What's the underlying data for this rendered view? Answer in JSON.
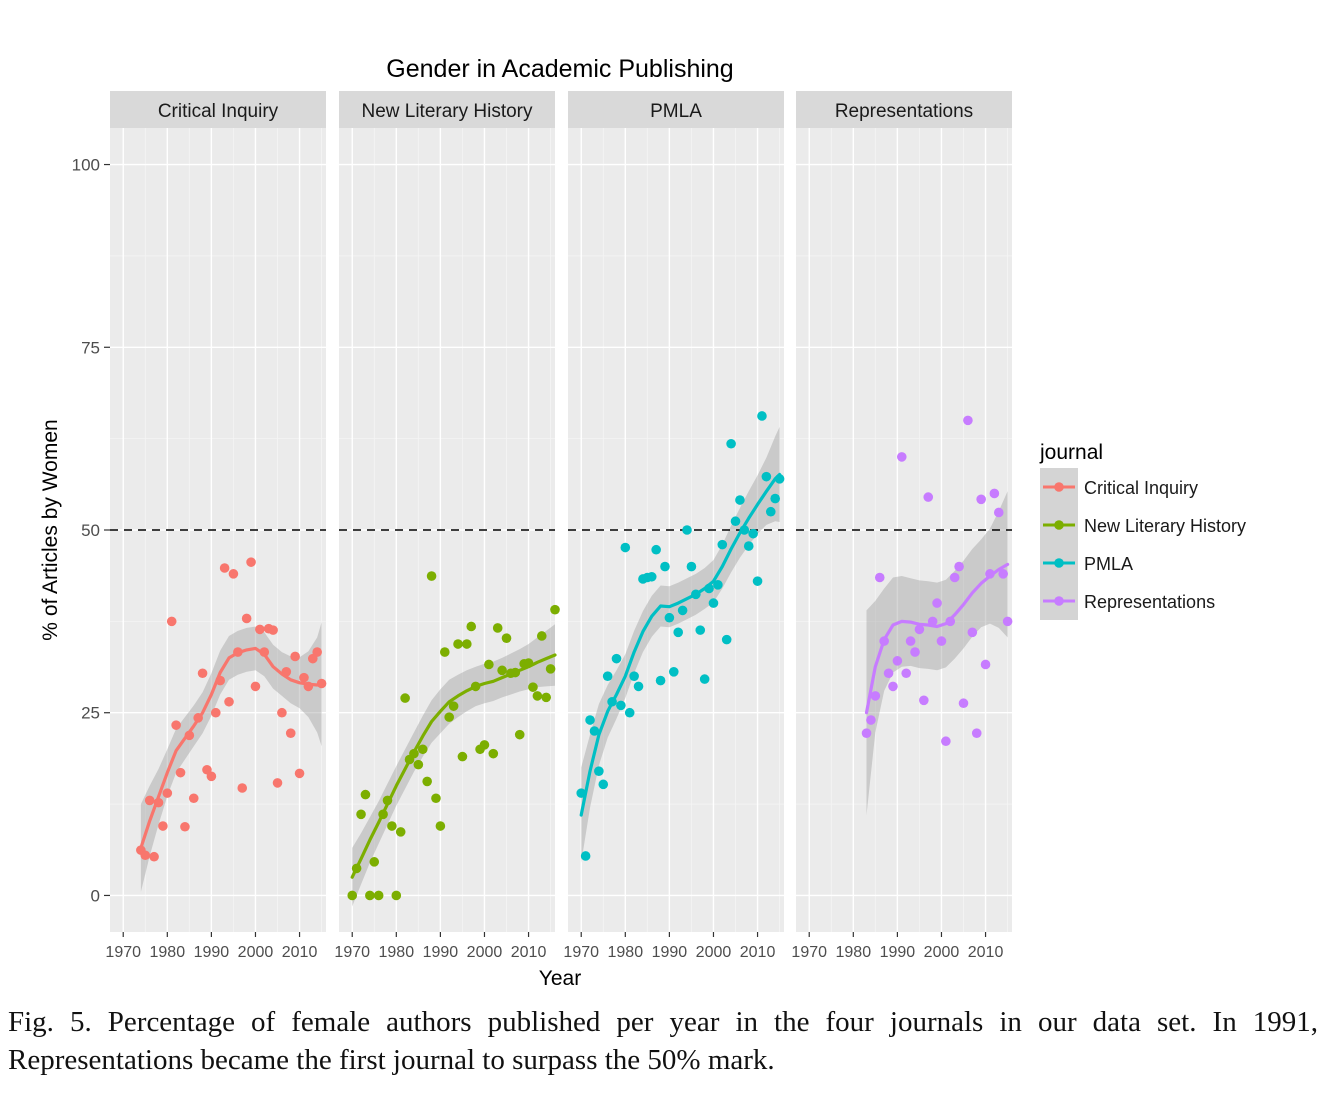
{
  "chart_data": {
    "type": "scatter",
    "title": "Gender in Academic Publishing",
    "xlabel": "Year",
    "ylabel": "% of Articles by Women",
    "x_ticks": [
      1970,
      1980,
      1990,
      2000,
      2010
    ],
    "x_tick_labels": [
      "1970",
      "1980",
      "1990",
      "2000",
      "2010"
    ],
    "xlim": [
      1967,
      2016
    ],
    "y_ticks": [
      0,
      25,
      50,
      75,
      100
    ],
    "y_tick_labels": [
      "0",
      "25",
      "50",
      "75",
      "100"
    ],
    "ylim": [
      -5,
      105
    ],
    "reference_line": {
      "y": 50,
      "style": "dashed"
    },
    "grid": true,
    "smoother": "loess with confidence band",
    "legend": {
      "title": "journal",
      "position": "right"
    },
    "facets": [
      {
        "name": "Critical Inquiry",
        "color": "#F8766D",
        "points": [
          [
            1974,
            6.2
          ],
          [
            1975,
            5.5
          ],
          [
            1976,
            13
          ],
          [
            1977,
            5.3
          ],
          [
            1978,
            12.7
          ],
          [
            1979,
            9.5
          ],
          [
            1980,
            14
          ],
          [
            1981,
            37.5
          ],
          [
            1982,
            23.3
          ],
          [
            1983,
            16.8
          ],
          [
            1984,
            9.4
          ],
          [
            1985,
            21.9
          ],
          [
            1986,
            13.3
          ],
          [
            1987,
            24.3
          ],
          [
            1988,
            30.4
          ],
          [
            1989,
            17.2
          ],
          [
            1990,
            16.3
          ],
          [
            1991,
            25
          ],
          [
            1992,
            29.4
          ],
          [
            1993,
            44.8
          ],
          [
            1994,
            26.5
          ],
          [
            1995,
            44
          ],
          [
            1996,
            33.3
          ],
          [
            1997,
            14.7
          ],
          [
            1998,
            37.9
          ],
          [
            1999,
            45.6
          ],
          [
            2000,
            28.6
          ],
          [
            2001,
            36.4
          ],
          [
            2002,
            33.3
          ],
          [
            2003,
            36.5
          ],
          [
            2004,
            36.3
          ],
          [
            2005,
            15.4
          ],
          [
            2006,
            25
          ],
          [
            2007,
            30.6
          ],
          [
            2008,
            22.2
          ],
          [
            2009,
            32.7
          ],
          [
            2010,
            16.7
          ],
          [
            2011,
            29.8
          ],
          [
            2012,
            28.6
          ],
          [
            2013,
            32.4
          ],
          [
            2014,
            33.3
          ],
          [
            2015,
            29
          ]
        ],
        "smooth": [
          [
            1974,
            6.5
          ],
          [
            1976,
            10.2
          ],
          [
            1978,
            13.5
          ],
          [
            1980,
            16.8
          ],
          [
            1982,
            19.8
          ],
          [
            1984,
            21.5
          ],
          [
            1986,
            23.2
          ],
          [
            1988,
            25
          ],
          [
            1990,
            27.5
          ],
          [
            1992,
            30.5
          ],
          [
            1994,
            32.5
          ],
          [
            1996,
            33.2
          ],
          [
            1998,
            33.6
          ],
          [
            2000,
            33.8
          ],
          [
            2002,
            33
          ],
          [
            2004,
            31.3
          ],
          [
            2006,
            30.3
          ],
          [
            2008,
            29.5
          ],
          [
            2010,
            29.1
          ],
          [
            2012,
            28.9
          ],
          [
            2014,
            28.8
          ],
          [
            2015,
            28.9
          ]
        ],
        "band_halfwidth": [
          6,
          4.8,
          3.8,
          3.2,
          3,
          2.9,
          2.8,
          2.8,
          2.9,
          3,
          3,
          3,
          3,
          3,
          3,
          3,
          3,
          3.2,
          3.5,
          4.5,
          6.5,
          8.5
        ]
      },
      {
        "name": "New Literary History",
        "color": "#7CAE00",
        "points": [
          [
            1970,
            0
          ],
          [
            1971,
            3.7
          ],
          [
            1972,
            11.1
          ],
          [
            1973,
            13.8
          ],
          [
            1974,
            0
          ],
          [
            1975,
            4.6
          ],
          [
            1976,
            0
          ],
          [
            1977,
            11.1
          ],
          [
            1978,
            13
          ],
          [
            1979,
            9.5
          ],
          [
            1980,
            0
          ],
          [
            1981,
            8.7
          ],
          [
            1982,
            27
          ],
          [
            1983,
            18.6
          ],
          [
            1984,
            19.4
          ],
          [
            1985,
            17.9
          ],
          [
            1986,
            20
          ],
          [
            1987,
            15.6
          ],
          [
            1988,
            43.7
          ],
          [
            1989,
            13.3
          ],
          [
            1990,
            9.5
          ],
          [
            1991,
            33.3
          ],
          [
            1992,
            24.4
          ],
          [
            1993,
            25.9
          ],
          [
            1994,
            34.4
          ],
          [
            1995,
            19
          ],
          [
            1996,
            34.4
          ],
          [
            1997,
            36.8
          ],
          [
            1998,
            28.6
          ],
          [
            1999,
            20
          ],
          [
            2000,
            20.6
          ],
          [
            2001,
            31.6
          ],
          [
            2002,
            19.4
          ],
          [
            2003,
            36.6
          ],
          [
            2004,
            30.8
          ],
          [
            2005,
            35.2
          ],
          [
            2006,
            30.4
          ],
          [
            2007,
            30.5
          ],
          [
            2008,
            22
          ],
          [
            2009,
            31.7
          ],
          [
            2010,
            31.8
          ],
          [
            2011,
            28.5
          ],
          [
            2012,
            27.3
          ],
          [
            2013,
            35.5
          ],
          [
            2014,
            27.1
          ],
          [
            2015,
            31
          ],
          [
            2016,
            39.1
          ]
        ],
        "smooth": [
          [
            1970,
            2.5
          ],
          [
            1972,
            5
          ],
          [
            1974,
            7.6
          ],
          [
            1976,
            10
          ],
          [
            1978,
            12.5
          ],
          [
            1980,
            15
          ],
          [
            1982,
            17.3
          ],
          [
            1984,
            19.6
          ],
          [
            1986,
            21.8
          ],
          [
            1988,
            23.8
          ],
          [
            1990,
            25.2
          ],
          [
            1992,
            26.5
          ],
          [
            1994,
            27.3
          ],
          [
            1996,
            28
          ],
          [
            1998,
            28.6
          ],
          [
            2000,
            29
          ],
          [
            2002,
            29.3
          ],
          [
            2004,
            29.8
          ],
          [
            2006,
            30.3
          ],
          [
            2008,
            30.8
          ],
          [
            2010,
            31.3
          ],
          [
            2012,
            31.9
          ],
          [
            2014,
            32.4
          ],
          [
            2016,
            32.9
          ]
        ],
        "band_halfwidth": [
          4,
          3.5,
          3.1,
          2.9,
          2.8,
          2.7,
          2.7,
          2.7,
          2.8,
          2.9,
          3,
          3,
          2.9,
          2.8,
          2.7,
          2.7,
          2.7,
          2.7,
          2.8,
          2.9,
          3.1,
          3.4,
          3.8,
          4.2
        ]
      },
      {
        "name": "PMLA",
        "color": "#00BFC4",
        "points": [
          [
            1970,
            14
          ],
          [
            1971,
            5.4
          ],
          [
            1972,
            24
          ],
          [
            1973,
            22.5
          ],
          [
            1974,
            17
          ],
          [
            1975,
            15.2
          ],
          [
            1976,
            30
          ],
          [
            1977,
            26.5
          ],
          [
            1978,
            32.4
          ],
          [
            1979,
            26
          ],
          [
            1980,
            47.6
          ],
          [
            1981,
            25
          ],
          [
            1982,
            30
          ],
          [
            1983,
            28.6
          ],
          [
            1984,
            43.3
          ],
          [
            1985,
            43.5
          ],
          [
            1986,
            43.6
          ],
          [
            1987,
            47.3
          ],
          [
            1988,
            29.4
          ],
          [
            1989,
            45
          ],
          [
            1990,
            38
          ],
          [
            1991,
            30.6
          ],
          [
            1992,
            36
          ],
          [
            1993,
            39
          ],
          [
            1994,
            50
          ],
          [
            1995,
            45
          ],
          [
            1996,
            41.2
          ],
          [
            1997,
            36.3
          ],
          [
            1998,
            29.6
          ],
          [
            1999,
            42
          ],
          [
            2000,
            40
          ],
          [
            2001,
            42.5
          ],
          [
            2002,
            48
          ],
          [
            2003,
            35
          ],
          [
            2004,
            61.8
          ],
          [
            2005,
            51.2
          ],
          [
            2006,
            54.1
          ],
          [
            2007,
            50
          ],
          [
            2008,
            47.8
          ],
          [
            2009,
            49.5
          ],
          [
            2010,
            43
          ],
          [
            2011,
            65.6
          ],
          [
            2012,
            57.3
          ],
          [
            2013,
            52.5
          ],
          [
            2014,
            54.3
          ],
          [
            2015,
            57
          ]
        ],
        "smooth": [
          [
            1970,
            11
          ],
          [
            1972,
            17
          ],
          [
            1974,
            22
          ],
          [
            1976,
            25.2
          ],
          [
            1978,
            27.5
          ],
          [
            1980,
            30
          ],
          [
            1982,
            33.3
          ],
          [
            1984,
            36.1
          ],
          [
            1986,
            38.2
          ],
          [
            1988,
            39.6
          ],
          [
            1990,
            39.5
          ],
          [
            1992,
            40
          ],
          [
            1994,
            40.6
          ],
          [
            1996,
            41.2
          ],
          [
            1998,
            42
          ],
          [
            2000,
            43
          ],
          [
            2002,
            45
          ],
          [
            2004,
            47.4
          ],
          [
            2006,
            49.6
          ],
          [
            2008,
            51.6
          ],
          [
            2010,
            53.5
          ],
          [
            2012,
            55.3
          ],
          [
            2014,
            57
          ],
          [
            2015,
            57.6
          ]
        ],
        "band_halfwidth": [
          6.5,
          5,
          4.2,
          3.6,
          3.3,
          3,
          2.9,
          2.8,
          2.8,
          2.8,
          2.8,
          2.8,
          2.8,
          2.8,
          2.8,
          2.9,
          3,
          3.2,
          3.4,
          3.7,
          4,
          4.6,
          5.8,
          6.5
        ]
      },
      {
        "name": "Representations",
        "color": "#C77CFF",
        "points": [
          [
            1983,
            22.2
          ],
          [
            1984,
            24
          ],
          [
            1985,
            27.3
          ],
          [
            1986,
            43.5
          ],
          [
            1987,
            34.8
          ],
          [
            1988,
            30.4
          ],
          [
            1989,
            28.6
          ],
          [
            1990,
            32.1
          ],
          [
            1991,
            60
          ],
          [
            1992,
            30.4
          ],
          [
            1993,
            34.8
          ],
          [
            1994,
            33.3
          ],
          [
            1995,
            36.4
          ],
          [
            1996,
            26.7
          ],
          [
            1997,
            54.5
          ],
          [
            1998,
            37.5
          ],
          [
            1999,
            40
          ],
          [
            2000,
            34.8
          ],
          [
            2001,
            21.1
          ],
          [
            2002,
            37.5
          ],
          [
            2003,
            43.5
          ],
          [
            2004,
            45
          ],
          [
            2005,
            26.3
          ],
          [
            2006,
            65
          ],
          [
            2007,
            36
          ],
          [
            2008,
            22.2
          ],
          [
            2009,
            54.2
          ],
          [
            2010,
            31.6
          ],
          [
            2011,
            44
          ],
          [
            2012,
            55
          ],
          [
            2013,
            52.4
          ],
          [
            2014,
            44
          ],
          [
            2015,
            37.5
          ]
        ],
        "smooth": [
          [
            1983,
            25
          ],
          [
            1985,
            31.3
          ],
          [
            1987,
            35
          ],
          [
            1989,
            37
          ],
          [
            1991,
            37.5
          ],
          [
            1993,
            37.4
          ],
          [
            1995,
            37.1
          ],
          [
            1997,
            37
          ],
          [
            1999,
            36.8
          ],
          [
            2001,
            37.2
          ],
          [
            2003,
            38.4
          ],
          [
            2005,
            39.8
          ],
          [
            2007,
            41.4
          ],
          [
            2009,
            42.7
          ],
          [
            2011,
            43.7
          ],
          [
            2013,
            44.6
          ],
          [
            2015,
            45.3
          ]
        ],
        "band_halfwidth": [
          14,
          9,
          7,
          6.5,
          6.2,
          6,
          6,
          6,
          6,
          6,
          6,
          6,
          6,
          6,
          6.5,
          8,
          10
        ]
      }
    ]
  },
  "caption": "Fig. 5. Percentage of female authors published per year in the four journals in our data set. In 1991, Representations became the first journal to surpass the 50% mark."
}
